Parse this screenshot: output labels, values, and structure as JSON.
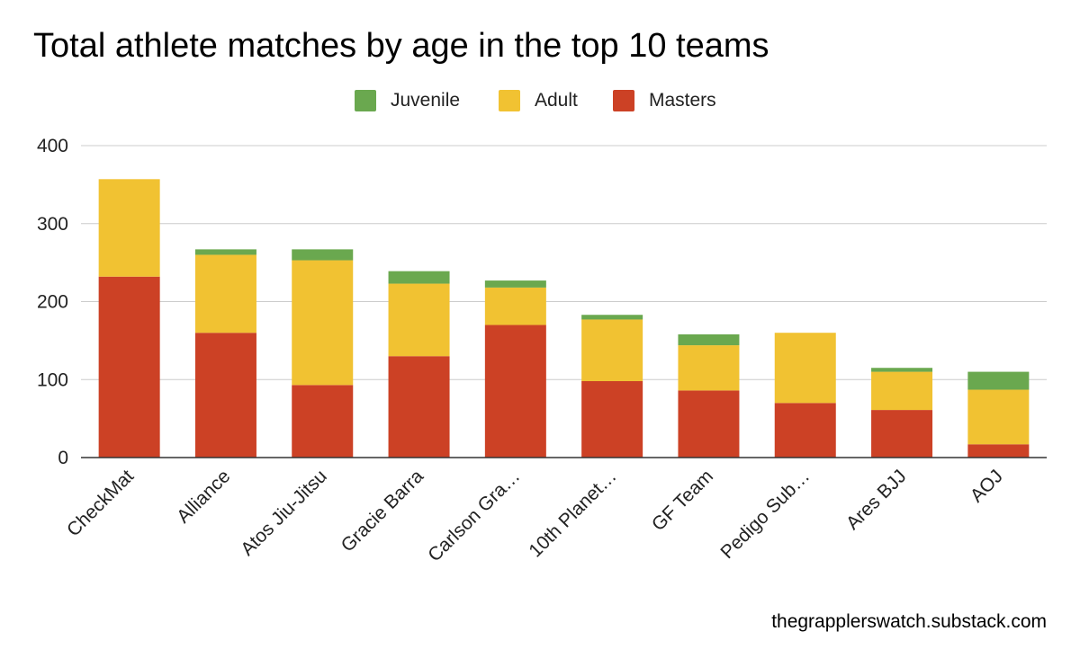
{
  "chart_data": {
    "type": "bar",
    "stacked": true,
    "title": "Total athlete matches by age in the top 10 teams",
    "xlabel": "",
    "ylabel": "",
    "ylim": [
      0,
      400
    ],
    "yticks": [
      "0",
      "100",
      "200",
      "300",
      "400"
    ],
    "grid": true,
    "legend_position": "top-center",
    "categories": [
      "CheckMat",
      "Alliance",
      "Atos Jiu-Jitsu",
      "Gracie Barra",
      "Carlson Gra…",
      "10th Planet…",
      "GF Team",
      "Pedigo Sub…",
      "Ares BJJ",
      "AOJ"
    ],
    "series": [
      {
        "name": "Masters",
        "color": "#cc4125",
        "values": [
          232,
          160,
          93,
          130,
          170,
          98,
          86,
          70,
          61,
          17
        ]
      },
      {
        "name": "Adult",
        "color": "#f1c232",
        "values": [
          125,
          100,
          160,
          93,
          48,
          79,
          58,
          90,
          49,
          70
        ]
      },
      {
        "name": "Juvenile",
        "color": "#6aa84f",
        "values": [
          0,
          7,
          14,
          16,
          9,
          6,
          14,
          0,
          5,
          23
        ]
      }
    ],
    "legend_order": [
      "Juvenile",
      "Adult",
      "Masters"
    ]
  },
  "source_note": "thegrapplerswatch.substack.com"
}
